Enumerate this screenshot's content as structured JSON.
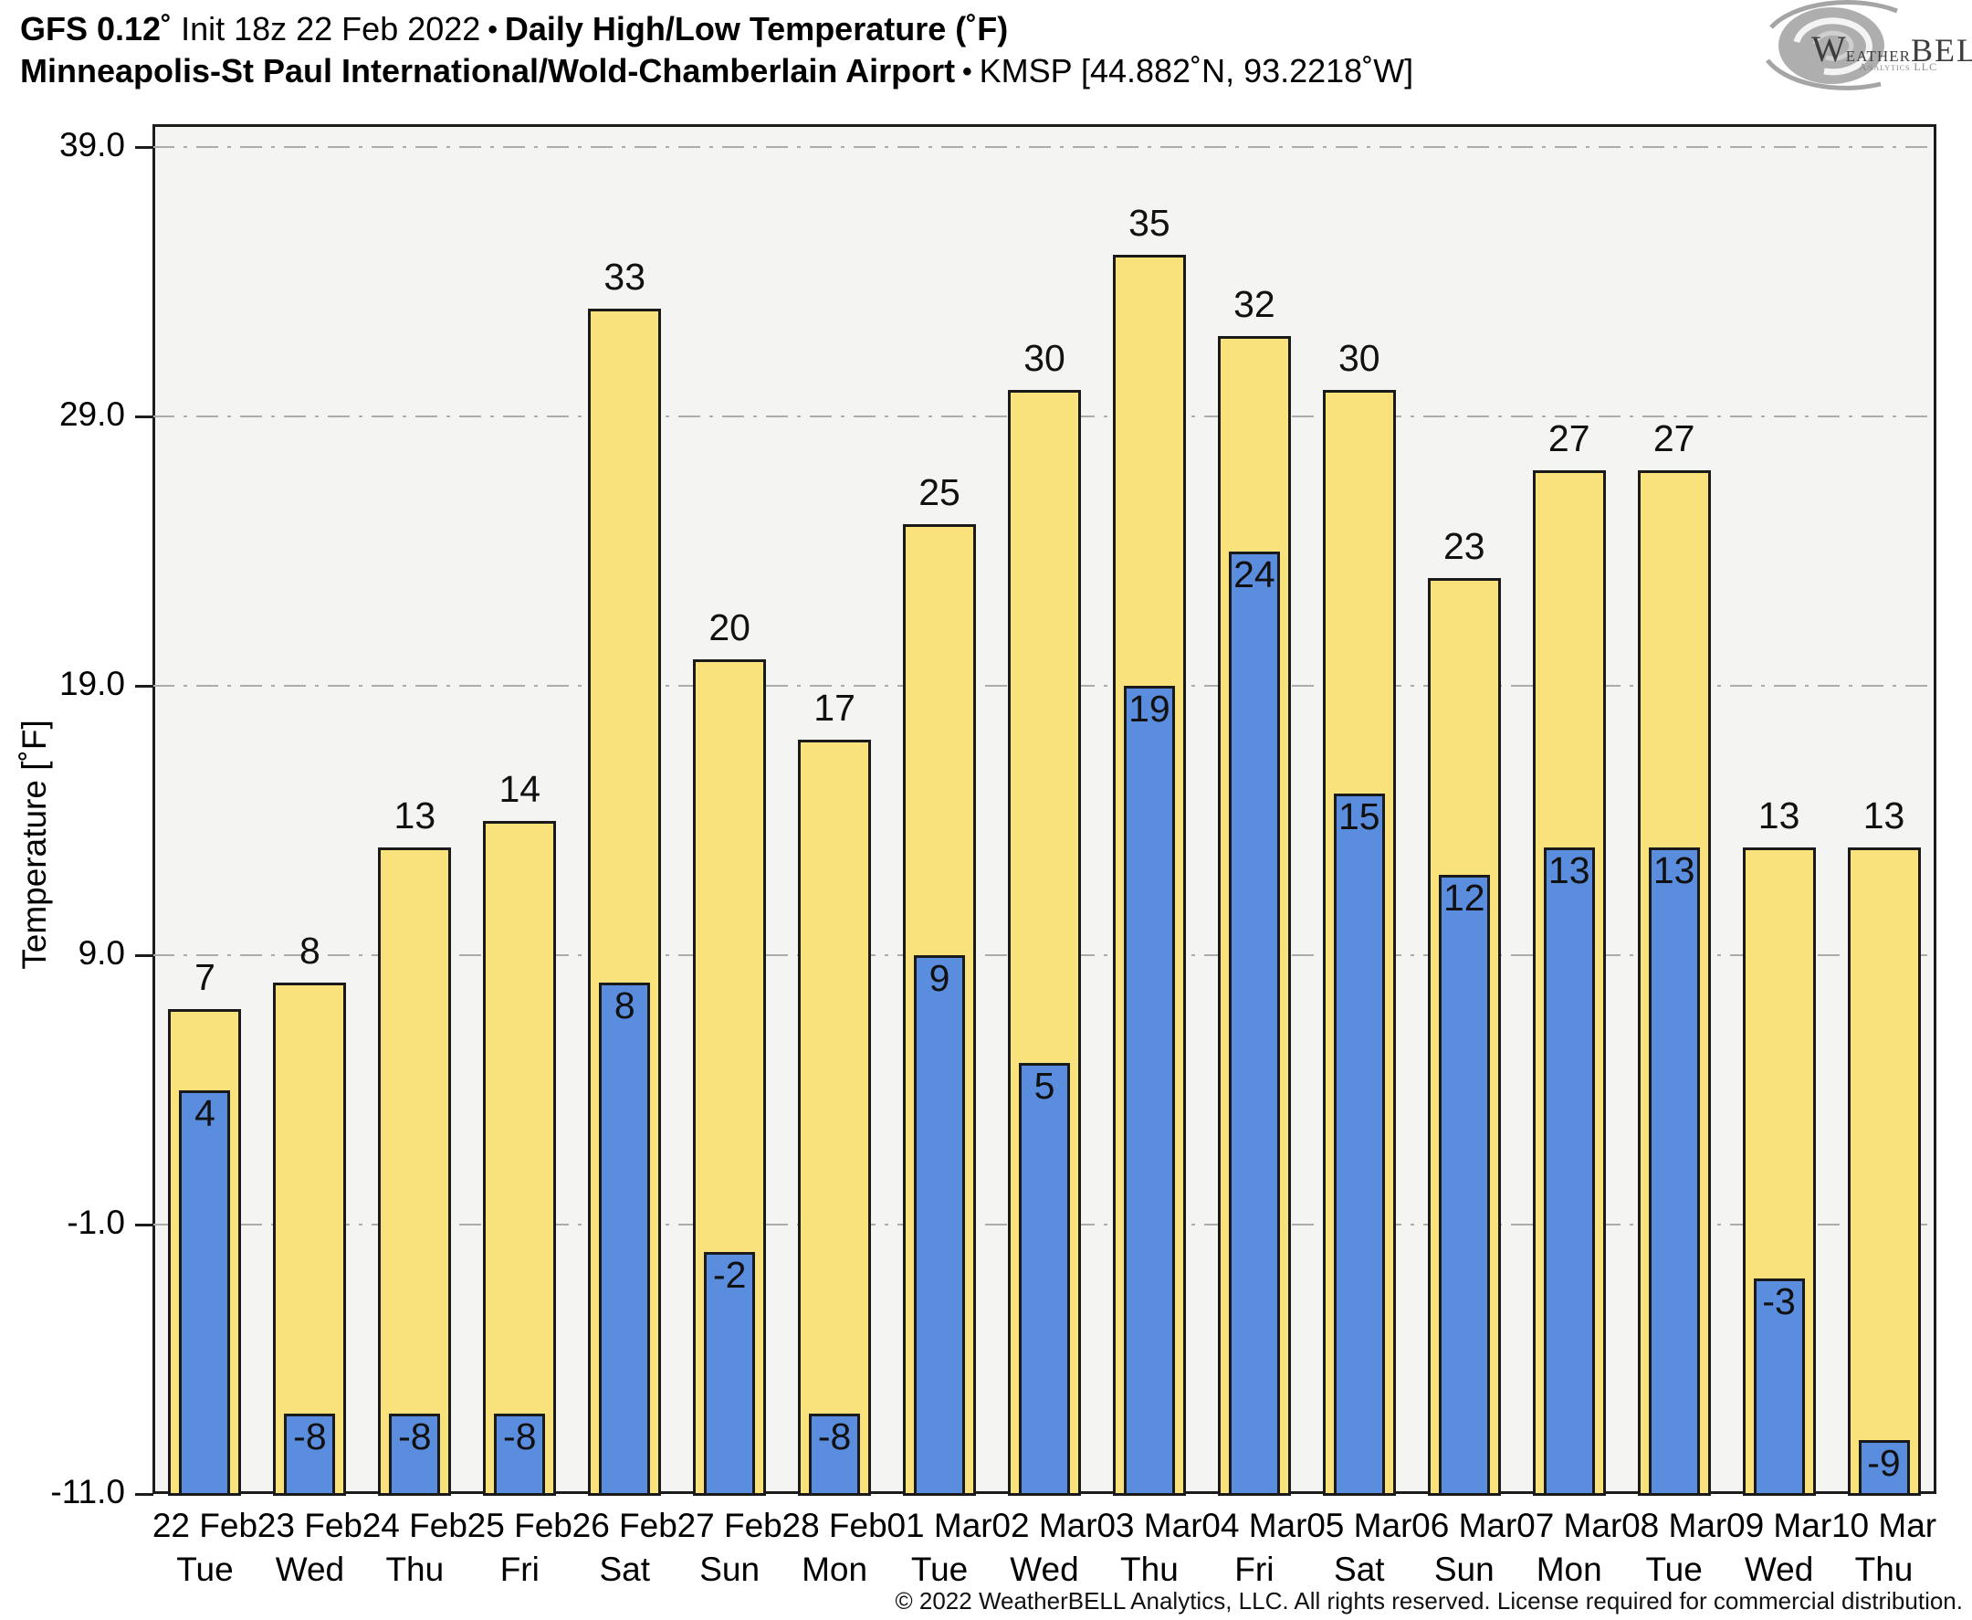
{
  "header": {
    "model": "GFS 0.12˚",
    "init": " Init 18z 22 Feb 2022",
    "separator": "•",
    "product": "Daily High/Low Temperature (˚F)",
    "station_name": "Minneapolis-St Paul International/Wold-Chamberlain Airport",
    "station_meta": "KMSP [44.882˚N, 93.2218˚W]"
  },
  "logo": {
    "brand_w": "W",
    "brand_eather": "eather",
    "brand_bell": "BELL",
    "subtext": "Analytics LLC"
  },
  "chart_data": {
    "type": "bar",
    "title": "GFS 0.12˚ Init 18z 22 Feb 2022 - Daily High/Low Temperature (˚F) - KMSP",
    "ylabel": "Temperature [˚F]",
    "xlabel": "",
    "yticks": [
      39.0,
      29.0,
      19.0,
      9.0,
      -1.0,
      -11.0
    ],
    "ylim": [
      -11.0,
      39.85
    ],
    "bar_base": -11.0,
    "grid": "horizontal dash-dot",
    "legend_position": "none",
    "categories": [
      {
        "date": "22 Feb",
        "weekday": "Tue"
      },
      {
        "date": "23 Feb",
        "weekday": "Wed"
      },
      {
        "date": "24 Feb",
        "weekday": "Thu"
      },
      {
        "date": "25 Feb",
        "weekday": "Fri"
      },
      {
        "date": "26 Feb",
        "weekday": "Sat"
      },
      {
        "date": "27 Feb",
        "weekday": "Sun"
      },
      {
        "date": "28 Feb",
        "weekday": "Mon"
      },
      {
        "date": "01 Mar",
        "weekday": "Tue"
      },
      {
        "date": "02 Mar",
        "weekday": "Wed"
      },
      {
        "date": "03 Mar",
        "weekday": "Thu"
      },
      {
        "date": "04 Mar",
        "weekday": "Fri"
      },
      {
        "date": "05 Mar",
        "weekday": "Sat"
      },
      {
        "date": "06 Mar",
        "weekday": "Sun"
      },
      {
        "date": "07 Mar",
        "weekday": "Mon"
      },
      {
        "date": "08 Mar",
        "weekday": "Tue"
      },
      {
        "date": "09 Mar",
        "weekday": "Wed"
      },
      {
        "date": "10 Mar",
        "weekday": "Thu"
      }
    ],
    "series": [
      {
        "name": "Daily High",
        "color": "#f9e27c",
        "values": [
          7,
          8,
          13,
          14,
          33,
          20,
          17,
          25,
          30,
          35,
          32,
          30,
          23,
          27,
          27,
          13,
          13
        ]
      },
      {
        "name": "Daily Low",
        "color": "#5b8dde",
        "values": [
          4,
          -8,
          -8,
          -8,
          8,
          -2,
          -8,
          9,
          5,
          19,
          24,
          15,
          12,
          13,
          13,
          -3,
          -9
        ]
      }
    ]
  },
  "footer": "© 2022 WeatherBELL Analytics, LLC. All rights reserved. License required for commercial distribution."
}
